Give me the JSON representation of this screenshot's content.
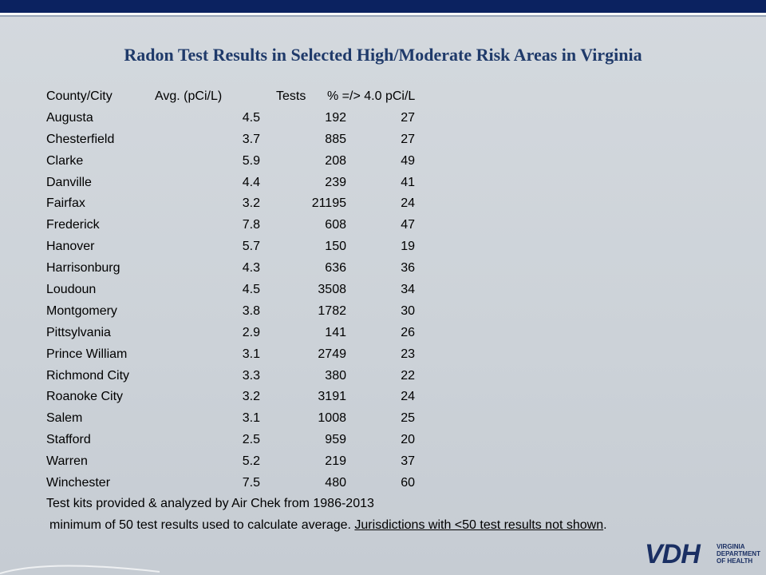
{
  "title": "Radon Test Results in Selected High/Moderate Risk Areas in Virginia",
  "table": {
    "headers": {
      "name": "County/City",
      "avg": "Avg. (pCi/L)",
      "tests": "Tests",
      "pct": "% =/> 4.0 pCi/L"
    },
    "rows": [
      {
        "name": "Augusta",
        "avg": "4.5",
        "tests": "192",
        "pct": "27"
      },
      {
        "name": "Chesterfield",
        "avg": "3.7",
        "tests": "885",
        "pct": "27"
      },
      {
        "name": "Clarke",
        "avg": "5.9",
        "tests": "208",
        "pct": "49"
      },
      {
        "name": "Danville",
        "avg": "4.4",
        "tests": "239",
        "pct": "41"
      },
      {
        "name": "Fairfax",
        "avg": "3.2",
        "tests": "21195",
        "pct": "24"
      },
      {
        "name": "Frederick",
        "avg": "7.8",
        "tests": "608",
        "pct": "47"
      },
      {
        "name": "Hanover",
        "avg": "5.7",
        "tests": "150",
        "pct": "19"
      },
      {
        "name": "Harrisonburg",
        "avg": "4.3",
        "tests": "636",
        "pct": "36"
      },
      {
        "name": "Loudoun",
        "avg": "4.5",
        "tests": "3508",
        "pct": "34"
      },
      {
        "name": "Montgomery",
        "avg": "3.8",
        "tests": "1782",
        "pct": "30"
      },
      {
        "name": "Pittsylvania",
        "avg": "2.9",
        "tests": "141",
        "pct": "26"
      },
      {
        "name": "Prince William",
        "avg": "3.1",
        "tests": "2749",
        "pct": "23"
      },
      {
        "name": "Richmond City",
        "avg": "3.3",
        "tests": "380",
        "pct": "22"
      },
      {
        "name": "Roanoke City",
        "avg": "3.2",
        "tests": "3191",
        "pct": "24"
      },
      {
        "name": "Salem",
        "avg": "3.1",
        "tests": "1008",
        "pct": "25"
      },
      {
        "name": "Stafford",
        "avg": "2.5",
        "tests": "959",
        "pct": "20"
      },
      {
        "name": "Warren",
        "avg": "5.2",
        "tests": "219",
        "pct": "37"
      },
      {
        "name": "Winchester",
        "avg": "7.5",
        "tests": "480",
        "pct": "60"
      }
    ]
  },
  "notes": {
    "line1": "Test kits provided & analyzed by Air Chek  from 1986-2013",
    "line2_prefix": "minimum of 50 test results used to calculate average. ",
    "line2_underlined": "Jurisdictions with <50 test results not shown",
    "line2_suffix": "."
  },
  "logo": {
    "mark": "VDH",
    "lines": [
      "VIRGINIA",
      "DEPARTMENT",
      "OF HEALTH"
    ],
    "color": "#1a2f63"
  },
  "colors": {
    "top_bar": "#0b2260",
    "title": "#1f3a6a"
  }
}
